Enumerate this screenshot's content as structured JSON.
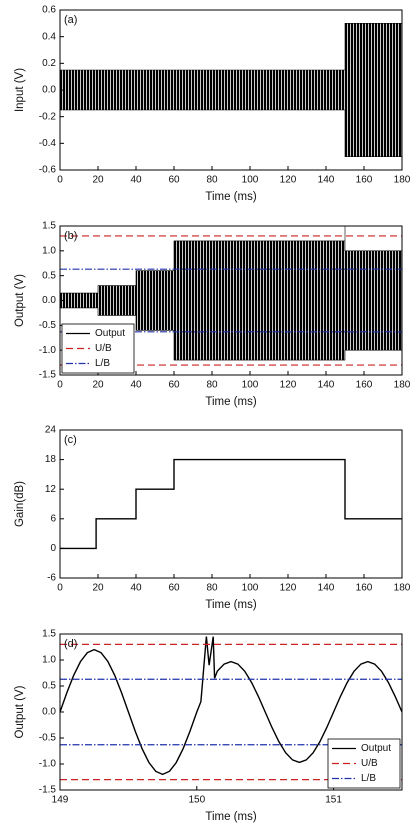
{
  "chart_data": [
    {
      "type": "envelope",
      "label": "(a)",
      "xlabel": "Time (ms)",
      "ylabel": "Input (V)",
      "xlim": [
        0,
        180
      ],
      "xticks": [
        0,
        20,
        40,
        60,
        80,
        100,
        120,
        140,
        160,
        180
      ],
      "ylim": [
        -0.6,
        0.6
      ],
      "yticks": [
        -0.6,
        -0.4,
        -0.2,
        {
          "value": 0,
          "label": "0.0"
        },
        0.2,
        0.4,
        0.6
      ],
      "series": [
        {
          "color": "#000000",
          "x": [
            0,
            150,
            150,
            180
          ],
          "upper": [
            0.15,
            0.15,
            0.5,
            0.5
          ],
          "lower": [
            -0.15,
            -0.15,
            -0.5,
            -0.5
          ]
        }
      ]
    },
    {
      "type": "envelope",
      "label": "(b)",
      "xlabel": "Time (ms)",
      "ylabel": "Output (V)",
      "xlim": [
        0,
        180
      ],
      "xticks": [
        0,
        20,
        40,
        60,
        80,
        100,
        120,
        140,
        160,
        180
      ],
      "ylim": [
        -1.5,
        1.5
      ],
      "yticks": [
        -1.5,
        {
          "value": -1,
          "label": "-1.0"
        },
        -0.5,
        {
          "value": 0,
          "label": "0.0"
        },
        0.5,
        {
          "value": 1,
          "label": "1.0"
        },
        1.5
      ],
      "series": [
        {
          "name": "Output",
          "color": "#000000",
          "x": [
            0,
            20,
            20,
            40,
            40,
            60,
            60,
            150,
            150,
            150,
            180
          ],
          "upper": [
            0.15,
            0.15,
            0.3,
            0.3,
            0.6,
            0.6,
            1.2,
            1.2,
            1.5,
            1.0,
            1.0
          ],
          "lower": [
            -0.15,
            -0.15,
            -0.3,
            -0.3,
            -0.6,
            -0.6,
            -1.2,
            -1.2,
            -1.2,
            -1.0,
            -1.0
          ]
        }
      ],
      "hlines": [
        {
          "name": "U/B",
          "color": "#cc2222",
          "dash": "7,4",
          "values": [
            1.3,
            -1.3
          ]
        },
        {
          "name": "L/B",
          "color": "#2233aa",
          "dash": "7,2,1.5,2",
          "values": [
            0.63,
            -0.63
          ]
        }
      ],
      "legend": "lower left"
    },
    {
      "type": "line",
      "label": "(c)",
      "xlabel": "Time (ms)",
      "ylabel": "Gain(dB)",
      "xlim": [
        0,
        180
      ],
      "xticks": [
        0,
        20,
        40,
        60,
        80,
        100,
        120,
        140,
        160,
        180
      ],
      "ylim": [
        -6,
        24
      ],
      "yticks": [
        -6,
        0,
        6,
        12,
        18,
        24
      ],
      "series": [
        {
          "color": "#000000",
          "x": [
            0,
            19,
            19,
            40,
            40,
            60,
            60,
            150,
            150,
            180
          ],
          "values": [
            0,
            0,
            6,
            6,
            12,
            12,
            18,
            18,
            6,
            6
          ]
        }
      ]
    },
    {
      "type": "line",
      "label": "(d)",
      "xlabel": "Time (ms)",
      "ylabel": "Output (V)",
      "xlim": [
        149,
        151.5
      ],
      "xticks": [
        149,
        150,
        151
      ],
      "ylim": [
        -1.5,
        1.5
      ],
      "yticks": [
        -1.5,
        {
          "value": -1,
          "label": "-1.0"
        },
        -0.5,
        {
          "value": 0,
          "label": "0.0"
        },
        0.5,
        {
          "value": 1,
          "label": "1.0"
        },
        1.5
      ],
      "series": [
        {
          "name": "Output",
          "color": "#000000",
          "x": [
            149,
            149.05,
            149.1,
            149.15,
            149.2,
            149.25,
            149.3,
            149.35,
            149.4,
            149.45,
            149.5,
            149.55,
            149.6,
            149.65,
            149.7,
            149.75,
            149.8,
            149.85,
            149.9,
            149.95,
            150,
            150.03,
            150.07,
            150.09,
            150.12,
            150.13,
            150.15,
            150.2,
            150.25,
            150.3,
            150.35,
            150.4,
            150.45,
            150.5,
            150.55,
            150.6,
            150.65,
            150.7,
            150.75,
            150.8,
            150.85,
            150.9,
            150.95,
            151,
            151.05,
            151.1,
            151.15,
            151.2,
            151.25,
            151.3,
            151.35,
            151.4,
            151.45,
            151.5
          ],
          "values": [
            0,
            0.371,
            0.705,
            0.971,
            1.141,
            1.2,
            1.141,
            0.971,
            0.705,
            0.371,
            0,
            -0.371,
            -0.705,
            -0.971,
            -1.141,
            -1.2,
            -1.141,
            -0.971,
            -0.705,
            -0.371,
            0,
            0.2,
            1.45,
            0.9,
            1.45,
            0.65,
            0.785,
            0.922,
            0.97,
            0.922,
            0.785,
            0.57,
            0.3,
            0,
            -0.3,
            -0.57,
            -0.785,
            -0.922,
            -0.97,
            -0.922,
            -0.785,
            -0.57,
            -0.3,
            0,
            0.3,
            0.57,
            0.785,
            0.922,
            0.97,
            0.922,
            0.785,
            0.57,
            0.3,
            0
          ]
        }
      ],
      "hlines": [
        {
          "name": "U/B",
          "color": "#cc2222",
          "dash": "7,4",
          "values": [
            1.3,
            -1.3
          ]
        },
        {
          "name": "L/B",
          "color": "#2233aa",
          "dash": "7,2,1.5,2",
          "values": [
            0.63,
            -0.63
          ]
        }
      ],
      "legend": "lower right"
    }
  ]
}
